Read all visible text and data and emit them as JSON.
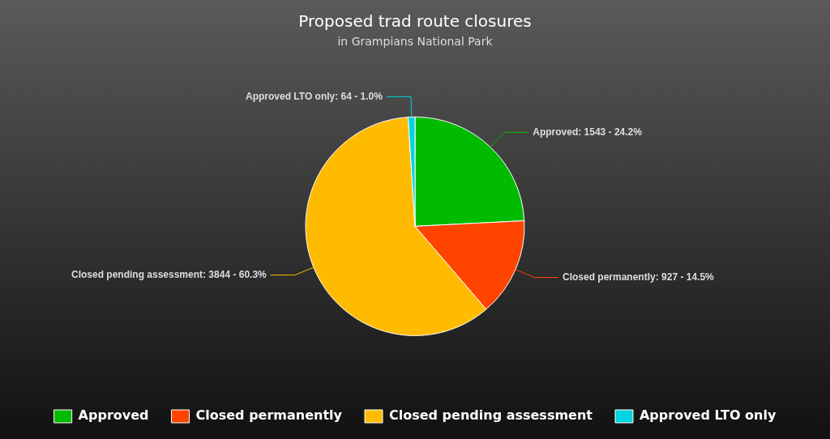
{
  "chart_data": {
    "type": "pie",
    "title": "Proposed trad route closures",
    "subtitle": "in Grampians National Park",
    "categories": [
      "Approved",
      "Closed permanently",
      "Closed pending assessment",
      "Approved LTO only"
    ],
    "values": [
      1543,
      927,
      3844,
      64
    ],
    "colors": [
      "#00bb00",
      "#ff4400",
      "#ffbb00",
      "#00d4e0"
    ],
    "value_labels": [
      "Approved: 1543 - 24.2%",
      "Closed permanently: 927 - 14.5%",
      "Closed pending assessment: 3844 - 60.3%",
      "Approved LTO only: 64 - 1.0%"
    ],
    "legend": "bottom"
  }
}
